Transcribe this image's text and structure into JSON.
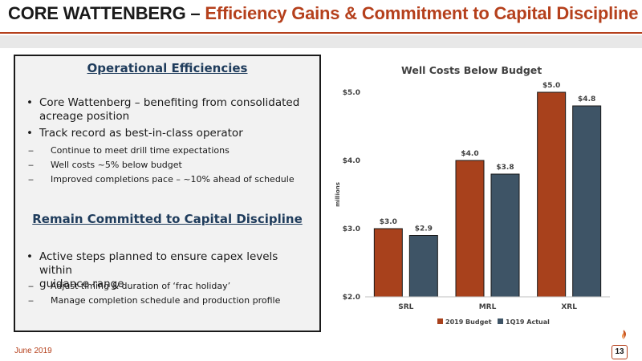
{
  "header": {
    "title_main": "CORE WATTENBERG –",
    "title_accent": "Efficiency Gains & Commitment to Capital Discipline"
  },
  "panel": {
    "section1_heading": "Operational Efficiencies",
    "section1_bullets": [
      {
        "line1": "Core Wattenberg – benefiting from consolidated",
        "line2": "acreage position"
      },
      {
        "line1": "Track record as best-in-class operator",
        "line2": ""
      }
    ],
    "section1_subbullets": [
      "Continue to meet drill time expectations",
      "Well costs ~5% below budget",
      "Improved completions pace – ~10% ahead of schedule"
    ],
    "section2_heading": "Remain Committed to Capital Discipline",
    "section2_bullets": [
      {
        "line1": "Active steps planned to ensure capex levels within",
        "line2": "guidance range"
      }
    ],
    "section2_subbullets": [
      "Adjust timing & duration of ‘frac holiday’",
      "Manage completion schedule and production profile"
    ],
    "bullet_glyph": "•",
    "dash_glyph": "‒"
  },
  "chart_data": {
    "type": "bar",
    "title": "Well Costs Below Budget",
    "ylabel": "millions",
    "categories": [
      "SRL",
      "MRL",
      "XRL"
    ],
    "series": [
      {
        "name": "2019 Budget",
        "values": [
          3.0,
          4.0,
          5.0
        ],
        "labels": [
          "$3.0",
          "$4.0",
          "$5.0"
        ],
        "color": "#a8411c"
      },
      {
        "name": "1Q19 Actual",
        "values": [
          2.9,
          3.8,
          4.8
        ],
        "labels": [
          "$2.9",
          "$3.8",
          "$4.8"
        ],
        "color": "#3e5466"
      }
    ],
    "yticks": [
      {
        "value": 2.0,
        "label": "$2.0"
      },
      {
        "value": 3.0,
        "label": "$3.0"
      },
      {
        "value": 4.0,
        "label": "$4.0"
      },
      {
        "value": 5.0,
        "label": "$5.0"
      }
    ],
    "ylim": [
      2.0,
      5.0
    ],
    "legend_position": "bottom",
    "grid": false
  },
  "footer": {
    "date": "June 2019",
    "page_number": "13"
  },
  "colors": {
    "accent": "#b5401c",
    "heading_blue": "#1f3c5c"
  }
}
